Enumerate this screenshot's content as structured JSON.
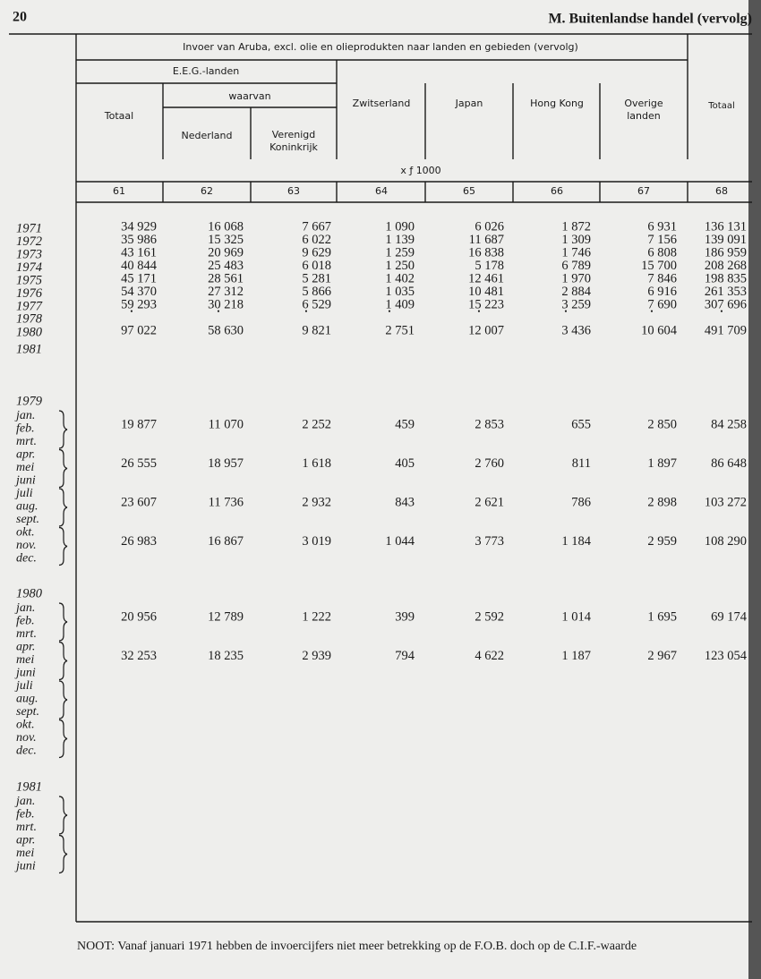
{
  "header": {
    "page_number": "20",
    "section": "M.  Buitenlandse handel (vervolg)"
  },
  "table": {
    "title": "Invoer van Aruba, excl. olie en olieprodukten naar landen en gebieden (vervolg)",
    "group_header": "E.E.G.-landen",
    "subgroup_header": "waarvan",
    "columns": [
      [
        "Totaal"
      ],
      [
        "Nederland"
      ],
      [
        "Verenigd",
        "Koninkrijk"
      ],
      [
        "Zwitserland"
      ],
      [
        "Japan"
      ],
      [
        "Hong Kong"
      ],
      [
        "Overige",
        "landen"
      ],
      [
        "Totaal"
      ]
    ],
    "unit": "x ƒ 1000",
    "column_numbers": [
      "61",
      "62",
      "63",
      "64",
      "65",
      "66",
      "67",
      "68"
    ],
    "annual_rows": [
      {
        "label": "1971",
        "values": [
          "34 929",
          "16 068",
          "7 667",
          "1 090",
          "6 026",
          "1 872",
          "6 931",
          "136 131"
        ]
      },
      {
        "label": "1972",
        "values": [
          "35 986",
          "15 325",
          "6 022",
          "1 139",
          "11 687",
          "1 309",
          "7 156",
          "139 091"
        ]
      },
      {
        "label": "1973",
        "values": [
          "43 161",
          "20 969",
          "9 629",
          "1 259",
          "16 838",
          "1 746",
          "6 808",
          "186 959"
        ]
      },
      {
        "label": "1974",
        "values": [
          "40 844",
          "25 483",
          "6 018",
          "1 250",
          "5 178",
          "6 789",
          "15 700",
          "208 268"
        ]
      },
      {
        "label": "1975",
        "values": [
          "45 171",
          "28 561",
          "5 281",
          "1 402",
          "12 461",
          "1 970",
          "7 846",
          "198 835"
        ]
      },
      {
        "label": "1976",
        "values": [
          "54 370",
          "27 312",
          "5 866",
          "1 035",
          "10 481",
          "2 884",
          "6 916",
          "261 353"
        ]
      },
      {
        "label": "1977",
        "values": [
          "59 293",
          "30 218",
          "6 529",
          "1 409",
          "15 223",
          "3 259",
          "7 690",
          "307 696"
        ]
      },
      {
        "label": "1978",
        "values": [
          "•",
          "•",
          "•",
          "•",
          "•",
          "•",
          "•",
          "•"
        ]
      },
      {
        "label": "1980",
        "values": [
          "97 022",
          "58 630",
          "9 821",
          "2 751",
          "12 007",
          "3 436",
          "10 604",
          "491 709"
        ]
      },
      {
        "label": "1981"
      }
    ],
    "periods": [
      {
        "year": "1979",
        "quarters": [
          {
            "months": [
              "jan.",
              "feb.",
              "mrt."
            ],
            "values": [
              "19 877",
              "11 070",
              "2 252",
              "459",
              "2 853",
              "655",
              "2 850",
              "84 258"
            ]
          },
          {
            "months": [
              "apr.",
              "mei",
              "juni"
            ],
            "values": [
              "26 555",
              "18 957",
              "1 618",
              "405",
              "2 760",
              "811",
              "1 897",
              "86 648"
            ]
          },
          {
            "months": [
              "juli",
              "aug.",
              "sept."
            ],
            "values": [
              "23 607",
              "11 736",
              "2 932",
              "843",
              "2 621",
              "786",
              "2 898",
              "103 272"
            ]
          },
          {
            "months": [
              "okt.",
              "nov.",
              "dec."
            ],
            "values": [
              "26 983",
              "16 867",
              "3 019",
              "1 044",
              "3 773",
              "1 184",
              "2 959",
              "108 290"
            ]
          }
        ]
      },
      {
        "year": "1980",
        "quarters": [
          {
            "months": [
              "jan.",
              "feb.",
              "mrt."
            ],
            "values": [
              "20 956",
              "12 789",
              "1 222",
              "399",
              "2 592",
              "1 014",
              "1 695",
              "69 174"
            ]
          },
          {
            "months": [
              "apr.",
              "mei",
              "juni"
            ],
            "values": [
              "32 253",
              "18 235",
              "2 939",
              "794",
              "4 622",
              "1 187",
              "2 967",
              "123 054"
            ]
          },
          {
            "months": [
              "juli",
              "aug.",
              "sept."
            ]
          },
          {
            "months": [
              "okt.",
              "nov.",
              "dec."
            ]
          }
        ]
      },
      {
        "year": "1981",
        "quarters": [
          {
            "months": [
              "jan.",
              "feb.",
              "mrt."
            ]
          },
          {
            "months": [
              "apr.",
              "mei",
              "juni"
            ]
          }
        ]
      }
    ]
  },
  "footnote": "NOOT:  Vanaf januari 1971 hebben de invoercijfers niet meer betrekking op de F.O.B. doch op de C.I.F.-waarde"
}
